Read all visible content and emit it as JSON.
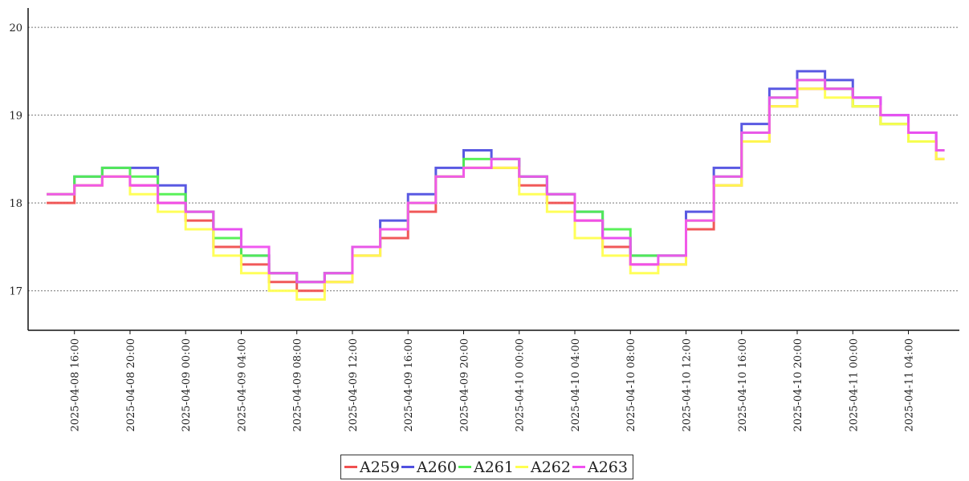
{
  "chart_data": {
    "type": "line",
    "step": true,
    "title": "",
    "xlabel": "",
    "ylabel": "",
    "ylim": [
      16.55,
      20.22
    ],
    "yticks": [
      17,
      18,
      19,
      20
    ],
    "grid": "horizontal dotted",
    "legend_position": "bottom-center",
    "xlim": [
      "2025-04-08 12:40",
      "2025-04-11 07:40"
    ],
    "xticks": [
      "2025-04-08 16:00",
      "2025-04-08 20:00",
      "2025-04-09 00:00",
      "2025-04-09 04:00",
      "2025-04-09 08:00",
      "2025-04-09 12:00",
      "2025-04-09 16:00",
      "2025-04-09 20:00",
      "2025-04-10 00:00",
      "2025-04-10 04:00",
      "2025-04-10 08:00",
      "2025-04-10 12:00",
      "2025-04-10 16:00",
      "2025-04-10 20:00",
      "2025-04-11 00:00",
      "2025-04-11 04:00"
    ],
    "xtick_labels": [
      "2025-04-08 16:00",
      "2025-04-08 20:00",
      "2025-04-09 00:00",
      "2025-04-09 04:00",
      "2025-04-09 08:00",
      "2025-04-09 12:00",
      "2025-04-09 16:00",
      "2025-04-09 20:00",
      "2025-04-10 00:00",
      "2025-04-10 04:00",
      "2025-04-10 08:00",
      "2025-04-10 12:00",
      "2025-04-10 16:00",
      "2025-04-10 20:00",
      "2025-04-11 00:00",
      "2025-04-11 04:00"
    ],
    "x": [
      "2025-04-08 14:00",
      "2025-04-08 16:00",
      "2025-04-08 18:00",
      "2025-04-08 20:00",
      "2025-04-08 22:00",
      "2025-04-09 00:00",
      "2025-04-09 02:00",
      "2025-04-09 04:00",
      "2025-04-09 06:00",
      "2025-04-09 08:00",
      "2025-04-09 10:00",
      "2025-04-09 12:00",
      "2025-04-09 14:00",
      "2025-04-09 16:00",
      "2025-04-09 18:00",
      "2025-04-09 20:00",
      "2025-04-09 22:00",
      "2025-04-10 00:00",
      "2025-04-10 02:00",
      "2025-04-10 04:00",
      "2025-04-10 06:00",
      "2025-04-10 08:00",
      "2025-04-10 10:00",
      "2025-04-10 12:00",
      "2025-04-10 14:00",
      "2025-04-10 16:00",
      "2025-04-10 18:00",
      "2025-04-10 20:00",
      "2025-04-10 22:00",
      "2025-04-11 00:00",
      "2025-04-11 02:00",
      "2025-04-11 04:00",
      "2025-04-11 06:00"
    ],
    "series": [
      {
        "name": "A259",
        "color": "#f05050",
        "values": [
          18.0,
          18.2,
          18.3,
          18.2,
          18.0,
          17.8,
          17.5,
          17.3,
          17.1,
          17.0,
          17.1,
          17.4,
          17.6,
          17.9,
          18.3,
          18.4,
          18.4,
          18.2,
          18.0,
          17.8,
          17.5,
          17.3,
          17.3,
          17.7,
          18.2,
          18.7,
          19.1,
          19.3,
          19.3,
          19.1,
          18.9,
          18.7,
          18.5
        ]
      },
      {
        "name": "A260",
        "color": "#5050e0",
        "values": [
          18.1,
          18.3,
          18.4,
          18.4,
          18.2,
          17.9,
          17.7,
          17.4,
          17.2,
          17.1,
          17.2,
          17.5,
          17.8,
          18.1,
          18.4,
          18.6,
          18.5,
          18.3,
          18.1,
          17.9,
          17.6,
          17.4,
          17.4,
          17.9,
          18.4,
          18.9,
          19.3,
          19.5,
          19.4,
          19.2,
          19.0,
          18.8,
          18.6
        ]
      },
      {
        "name": "A261",
        "color": "#50f050",
        "values": [
          18.1,
          18.3,
          18.4,
          18.3,
          18.1,
          17.9,
          17.6,
          17.4,
          17.2,
          17.1,
          17.2,
          17.5,
          17.7,
          18.0,
          18.3,
          18.5,
          18.5,
          18.3,
          18.1,
          17.9,
          17.7,
          17.4,
          17.4,
          17.8,
          18.3,
          18.8,
          19.2,
          19.4,
          19.3,
          19.1,
          18.9,
          18.7,
          18.6
        ]
      },
      {
        "name": "A262",
        "color": "#ffff50",
        "values": [
          18.1,
          18.2,
          18.3,
          18.1,
          17.9,
          17.7,
          17.4,
          17.2,
          17.0,
          16.9,
          17.1,
          17.4,
          17.7,
          18.0,
          18.3,
          18.4,
          18.4,
          18.1,
          17.9,
          17.6,
          17.4,
          17.2,
          17.3,
          17.8,
          18.2,
          18.7,
          19.1,
          19.3,
          19.2,
          19.1,
          18.9,
          18.7,
          18.5
        ]
      },
      {
        "name": "A263",
        "color": "#f050f0",
        "values": [
          18.1,
          18.2,
          18.3,
          18.2,
          18.0,
          17.9,
          17.7,
          17.5,
          17.2,
          17.1,
          17.2,
          17.5,
          17.7,
          18.0,
          18.3,
          18.4,
          18.5,
          18.3,
          18.1,
          17.8,
          17.6,
          17.3,
          17.4,
          17.8,
          18.3,
          18.8,
          19.2,
          19.4,
          19.3,
          19.2,
          19.0,
          18.8,
          18.6
        ]
      }
    ]
  }
}
